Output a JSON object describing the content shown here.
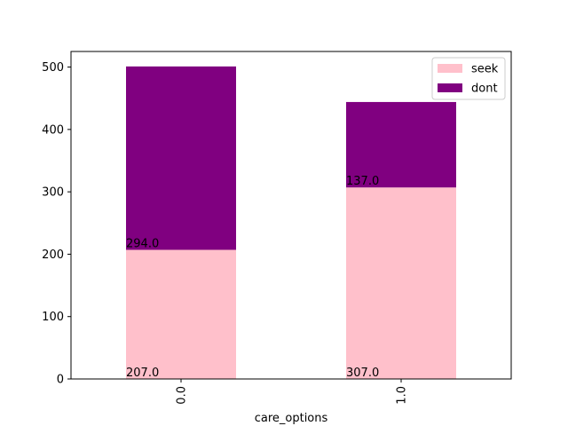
{
  "chart_data": {
    "type": "bar",
    "stacked": true,
    "categories": [
      "0.0",
      "1.0"
    ],
    "series": [
      {
        "name": "seek",
        "values": [
          207.0,
          307.0
        ],
        "color": "#ffc0cb"
      },
      {
        "name": "dont",
        "values": [
          294.0,
          137.0
        ],
        "color": "#800080"
      }
    ],
    "data_labels": [
      [
        "207.0",
        "307.0"
      ],
      [
        "294.0",
        "137.0"
      ]
    ],
    "xlabel": "care_options",
    "ylabel": "",
    "ylim": [
      0,
      525
    ],
    "yticks": [
      0,
      100,
      200,
      300,
      400,
      500
    ],
    "grid": false,
    "legend_position": "top-right"
  }
}
